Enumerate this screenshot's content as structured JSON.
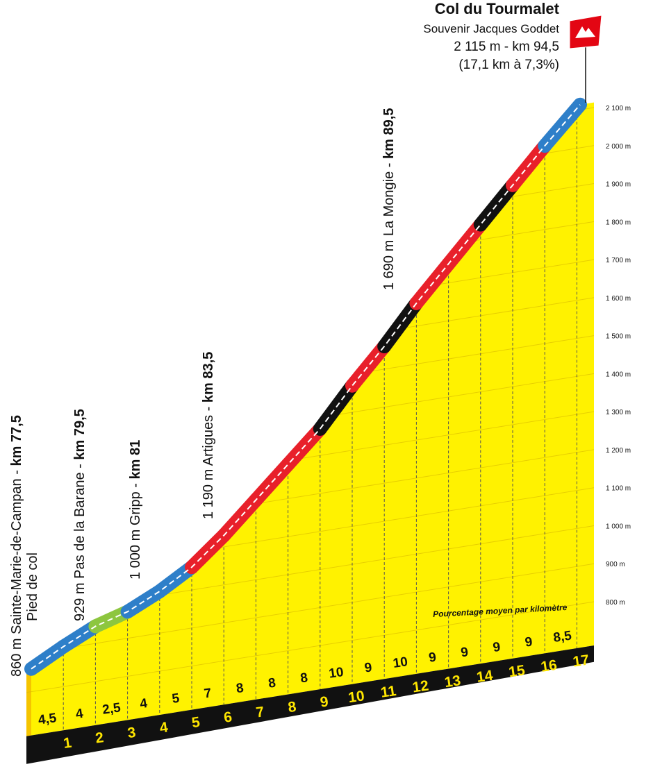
{
  "chart_data": {
    "type": "climb-profile",
    "summit": {
      "name": "Col du Tourmalet",
      "subtitle": "Souvenir Jacques Goddet",
      "altitude": "2 115 m - km 94,5",
      "stats": "(17,1 km à 7,3%)",
      "km": 17.1
    },
    "waypoints": [
      {
        "name": "860 m Sainte-Marie-de-Campan - ",
        "km": "km 77,5",
        "note": "Pied de col"
      },
      {
        "name": "929 m Pas de la Barane - ",
        "km": "km 79,5"
      },
      {
        "name": "1 000 m Gripp - ",
        "km": "km 81"
      },
      {
        "name": "1 190 m Artigues - ",
        "km": "km 83,5"
      },
      {
        "name": "1 690 m La Mongie - ",
        "km": "km 89,5"
      }
    ],
    "legend_note": "Pourcentage moyen par kilomètre",
    "start_elevation": 860,
    "x": [
      1,
      2,
      3,
      4,
      5,
      6,
      7,
      8,
      9,
      10,
      11,
      12,
      13,
      14,
      15,
      16,
      17
    ],
    "series": [
      {
        "values": [
          4.5,
          4,
          2.5,
          4,
          5,
          7,
          8,
          8,
          8,
          10,
          9,
          10,
          9,
          9,
          9,
          9,
          8.5
        ],
        "value_labels": [
          "4,5",
          "4",
          "2,5",
          "4",
          "5",
          "7",
          "8",
          "8",
          "8",
          "10",
          "9",
          "10",
          "9",
          "9",
          "9",
          "9",
          "8,5"
        ],
        "colors": [
          "#2e7fc9",
          "#2e7fc9",
          "#8dc63f",
          "#2e7fc9",
          "#2e7fc9",
          "#e8202a",
          "#e8202a",
          "#e8202a",
          "#e8202a",
          "#111111",
          "#e8202a",
          "#111111",
          "#e8202a",
          "#e8202a",
          "#111111",
          "#e8202a",
          "#2e7fc9"
        ]
      }
    ],
    "ylim": [
      800,
      2100
    ],
    "yticks": [
      {
        "value": 800,
        "label": "800 m"
      },
      {
        "value": 900,
        "label": "900 m"
      },
      {
        "value": 1000,
        "label": "1 000 m"
      },
      {
        "value": 1100,
        "label": "1 100 m"
      },
      {
        "value": 1200,
        "label": "1 200 m"
      },
      {
        "value": 1300,
        "label": "1 300 m"
      },
      {
        "value": 1400,
        "label": "1 400 m"
      },
      {
        "value": 1500,
        "label": "1 500 m"
      },
      {
        "value": 1600,
        "label": "1 600 m"
      },
      {
        "value": 1700,
        "label": "1 700 m"
      },
      {
        "value": 1800,
        "label": "1 800 m"
      },
      {
        "value": 1900,
        "label": "1 900 m"
      },
      {
        "value": 2000,
        "label": "2 000 m"
      },
      {
        "value": 2100,
        "label": "2 100 m"
      }
    ],
    "fill_color": "#fff200",
    "grid": true
  }
}
